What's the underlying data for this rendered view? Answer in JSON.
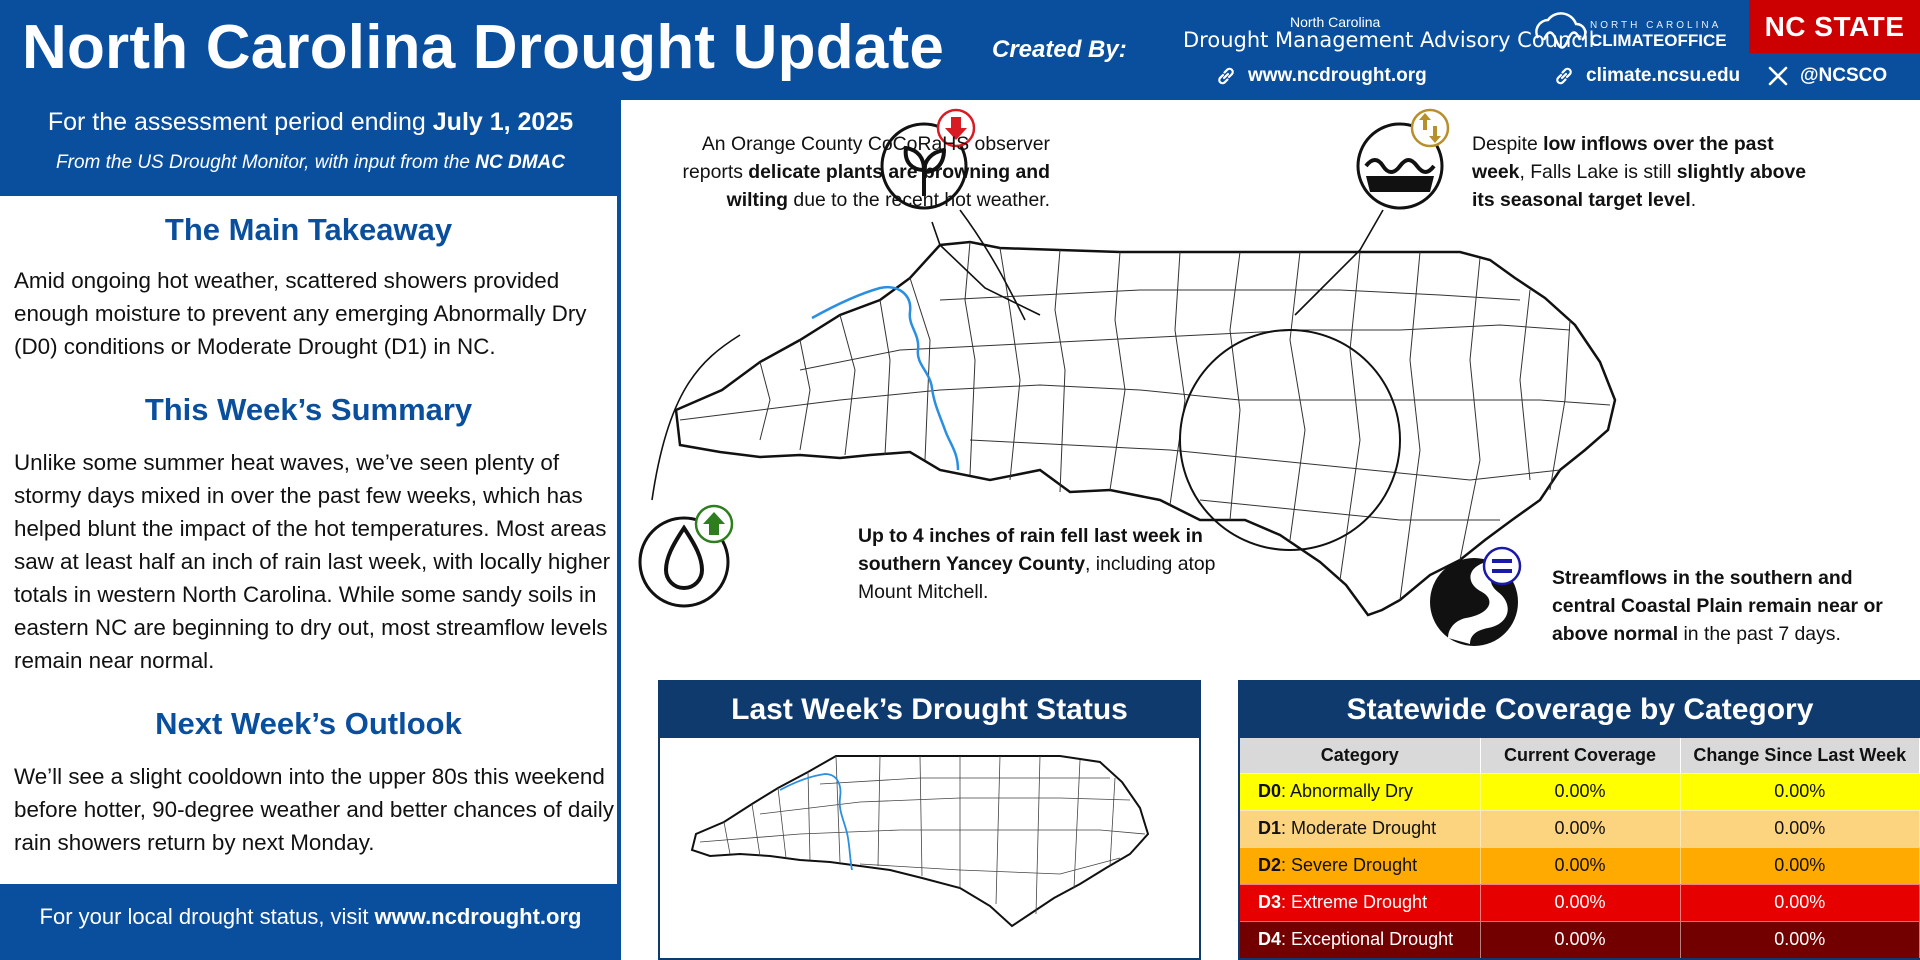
{
  "header": {
    "title": "North Carolina Drought Update",
    "created_by": "Created By:",
    "dmac_small": "North Carolina",
    "dmac_big": "Drought Management Advisory Council",
    "link1": "www.ncdrought.org",
    "link2": "climate.ncsu.edu",
    "link3": "@NCSCO",
    "climate_small": "NORTH CAROLINA",
    "climate_big": "CLIMATEOFFICE",
    "ncstate": "NC STATE"
  },
  "left": {
    "assess_prefix": "For the assessment period ending ",
    "assess_date": "July 1, 2025",
    "source_prefix": "From the US Drought Monitor, with input from the ",
    "source_org": "NC DMAC",
    "takeaway_title": "The Main Takeaway",
    "takeaway_body": "Amid ongoing hot weather, scattered showers provided enough moisture to prevent any emerging Abnormally Dry (D0) conditions or Moderate Drought (D1) in NC.",
    "summary_title": "This Week’s Summary",
    "summary_body": "Unlike some summer heat waves, we’ve seen plenty of stormy days mixed in over the past few weeks, which has helped blunt the impact of the hot temperatures. Most areas saw at least half an inch of rain last week, with locally higher totals in western North Carolina. While some sandy soils in eastern NC are beginning to dry out, most streamflow levels remain near normal.",
    "outlook_title": "Next Week’s Outlook",
    "outlook_body": "We’ll see a slight cooldown into the upper 80s this weekend before hotter, 90-degree weather and better chances of daily rain showers return by next Monday.",
    "footer_prefix": "For your local drought status, visit ",
    "footer_link": "www.ncdrought.org"
  },
  "callouts": {
    "plants": {
      "pre": "An Orange County CoCoRaHS observer reports ",
      "bold": "delicate plants are browning and wilting",
      "post": " due to the recent hot weather."
    },
    "lake": {
      "pre": "Despite ",
      "bold1": "low inflows over the past week",
      "mid": ", Falls Lake is still ",
      "bold2": "slightly above its seasonal target level",
      "post": "."
    },
    "rain": {
      "bold": "Up to 4 inches of rain fell last week in southern Yancey County",
      "post": ", including atop Mount Mitchell."
    },
    "stream": {
      "bold": "Streamflows in the southern and central Coastal Plain remain near or above normal",
      "post": " in the past 7 days."
    }
  },
  "last_week": {
    "title": "Last Week’s Drought Status"
  },
  "coverage": {
    "title": "Statewide Coverage by Category",
    "headers": [
      "Category",
      "Current Coverage",
      "Change Since Last Week"
    ],
    "rows": [
      {
        "code": "D0",
        "name": ": Abnormally Dry",
        "current": "0.00%",
        "change": "0.00%",
        "bg": "#ffff00",
        "fg": "#111111"
      },
      {
        "code": "D1",
        "name": ": Moderate Drought",
        "current": "0.00%",
        "change": "0.00%",
        "bg": "#fcd37f",
        "fg": "#111111"
      },
      {
        "code": "D2",
        "name": ": Severe Drought",
        "current": "0.00%",
        "change": "0.00%",
        "bg": "#ffaa00",
        "fg": "#111111"
      },
      {
        "code": "D3",
        "name": ": Extreme Drought",
        "current": "0.00%",
        "change": "0.00%",
        "bg": "#e60000",
        "fg": "#ffffff"
      },
      {
        "code": "D4",
        "name": ": Exceptional Drought",
        "current": "0.00%",
        "change": "0.00%",
        "bg": "#730000",
        "fg": "#ffffff"
      }
    ]
  },
  "colors": {
    "brand_blue": "#0a4f9e",
    "navy": "#0e3a6e",
    "ncstate_red": "#cc0000",
    "down_arrow": "#d91c24",
    "up_arrow": "#2e7d1e",
    "equal": "#1a1aa8",
    "gold": "#b8902a"
  },
  "icons": [
    "link-icon",
    "x-logo-icon",
    "plant-icon",
    "water-wave-icon",
    "raindrop-icon",
    "stream-icon",
    "down-arrow-icon",
    "up-arrow-icon",
    "equal-icon",
    "updown-arrows-icon"
  ]
}
